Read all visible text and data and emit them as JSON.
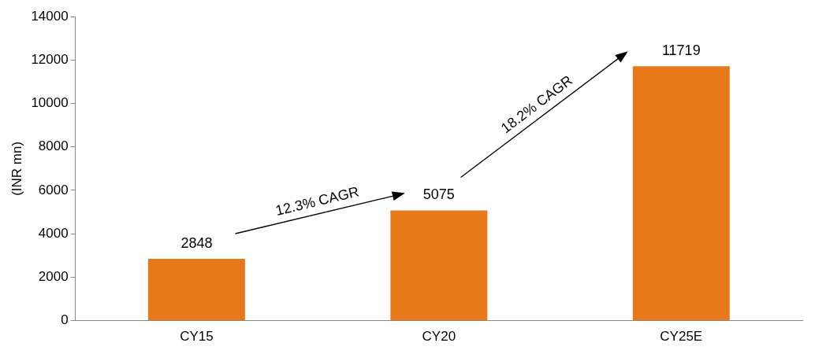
{
  "chart_data": {
    "type": "bar",
    "ylabel": "(INR mn)",
    "categories": [
      "CY15",
      "CY20",
      "CY25E"
    ],
    "values": [
      2848,
      5075,
      11719
    ],
    "color": "#e8791a",
    "ylim": [
      0,
      14000
    ],
    "yticks": [
      0,
      2000,
      4000,
      6000,
      8000,
      10000,
      12000,
      14000
    ],
    "grid": false,
    "data_labels": true,
    "annotations": [
      "12.3% CAGR",
      "18.2% CAGR"
    ]
  }
}
